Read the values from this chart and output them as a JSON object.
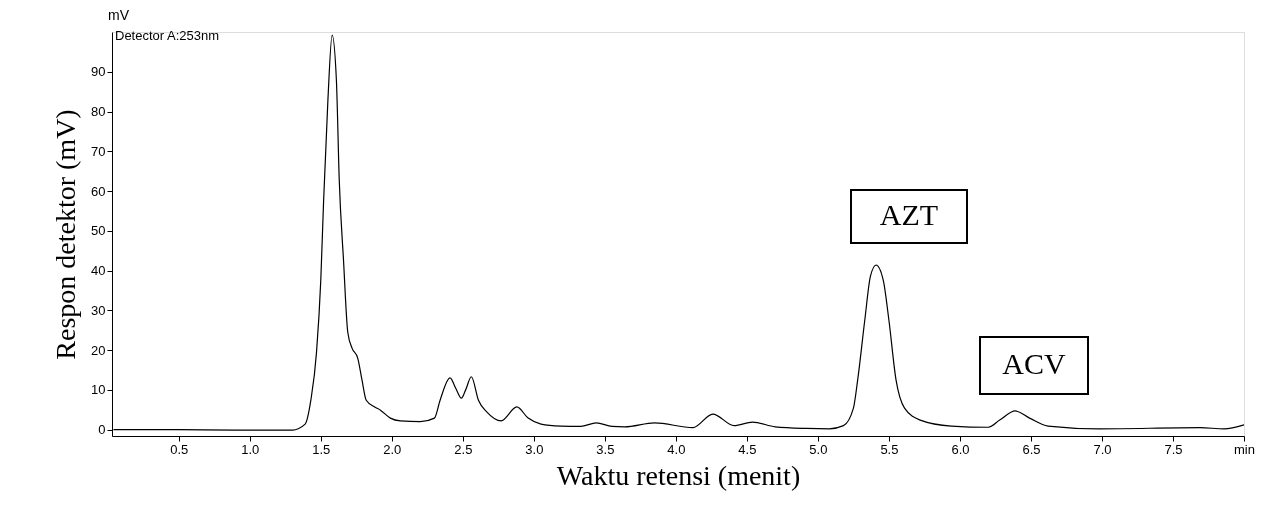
{
  "chart_data": {
    "type": "line",
    "xlabel": "Waktu retensi (menit)",
    "ylabel": "Respon detektor (mV)",
    "annotations": [
      "mV",
      "Detector A:253nm",
      "AZT",
      "ACV"
    ],
    "xlim": [
      0.03,
      8.0
    ],
    "ylim": [
      -1.6,
      100
    ],
    "xticks": [
      0.5,
      {
        "value": 1,
        "label": "1.0"
      },
      1.5,
      {
        "value": 2,
        "label": "2.0"
      },
      2.5,
      {
        "value": 3,
        "label": "3.0"
      },
      3.5,
      {
        "value": 4,
        "label": "4.0"
      },
      4.5,
      {
        "value": 5,
        "label": "5.0"
      },
      5.5,
      {
        "value": 6,
        "label": "6.0"
      },
      6.5,
      {
        "value": 7,
        "label": "7.0"
      },
      7.5,
      {
        "value": 8,
        "label": "min"
      }
    ],
    "yticks": [
      0,
      10,
      20,
      30,
      40,
      50,
      60,
      70,
      80,
      90
    ],
    "grid": false,
    "marker": "none",
    "line_style": "solid",
    "series": [
      {
        "color": "#000000",
        "x": [
          0.04,
          0.5,
          0.9,
          1.3,
          1.39,
          1.43,
          1.47,
          1.5,
          1.52,
          1.55,
          1.58,
          1.61,
          1.63,
          1.66,
          1.69,
          1.72,
          1.76,
          1.79,
          1.82,
          1.88,
          1.92,
          1.99,
          2.06,
          2.2,
          2.3,
          2.34,
          2.41,
          2.45,
          2.49,
          2.52,
          2.56,
          2.61,
          2.67,
          2.77,
          2.88,
          2.96,
          3.05,
          3.19,
          3.33,
          3.44,
          3.55,
          3.64,
          3.85,
          4.12,
          4.26,
          4.41,
          4.54,
          4.7,
          4.92,
          5.08,
          5.18,
          5.25,
          5.28,
          5.33,
          5.37,
          5.41,
          5.46,
          5.5,
          5.55,
          5.61,
          5.72,
          5.94,
          6.2,
          6.28,
          6.39,
          6.49,
          6.62,
          6.98,
          7.69,
          7.86,
          8.0
        ],
        "values": [
          0,
          0,
          -0.1,
          -0.1,
          1.4,
          7.4,
          19.5,
          37.6,
          57.7,
          82.8,
          99.2,
          87.8,
          62.7,
          42.6,
          24.5,
          20.5,
          18,
          12.5,
          7.4,
          5.7,
          4.9,
          2.9,
          2.2,
          2.0,
          2.9,
          7.4,
          13,
          10.4,
          7.9,
          10,
          13.3,
          7.4,
          4.4,
          2.2,
          5.7,
          2.9,
          1.4,
          0.9,
          0.8,
          1.7,
          0.8,
          0.7,
          1.7,
          0.5,
          3.9,
          1.0,
          1.9,
          0.7,
          0.3,
          0.2,
          1.0,
          5.4,
          12.5,
          27.5,
          38.6,
          41.4,
          37.6,
          27.5,
          12.5,
          5.4,
          2.4,
          0.9,
          0.6,
          2.4,
          4.7,
          2.9,
          0.9,
          0.2,
          0.5,
          0.2,
          1.2
        ]
      }
    ]
  }
}
